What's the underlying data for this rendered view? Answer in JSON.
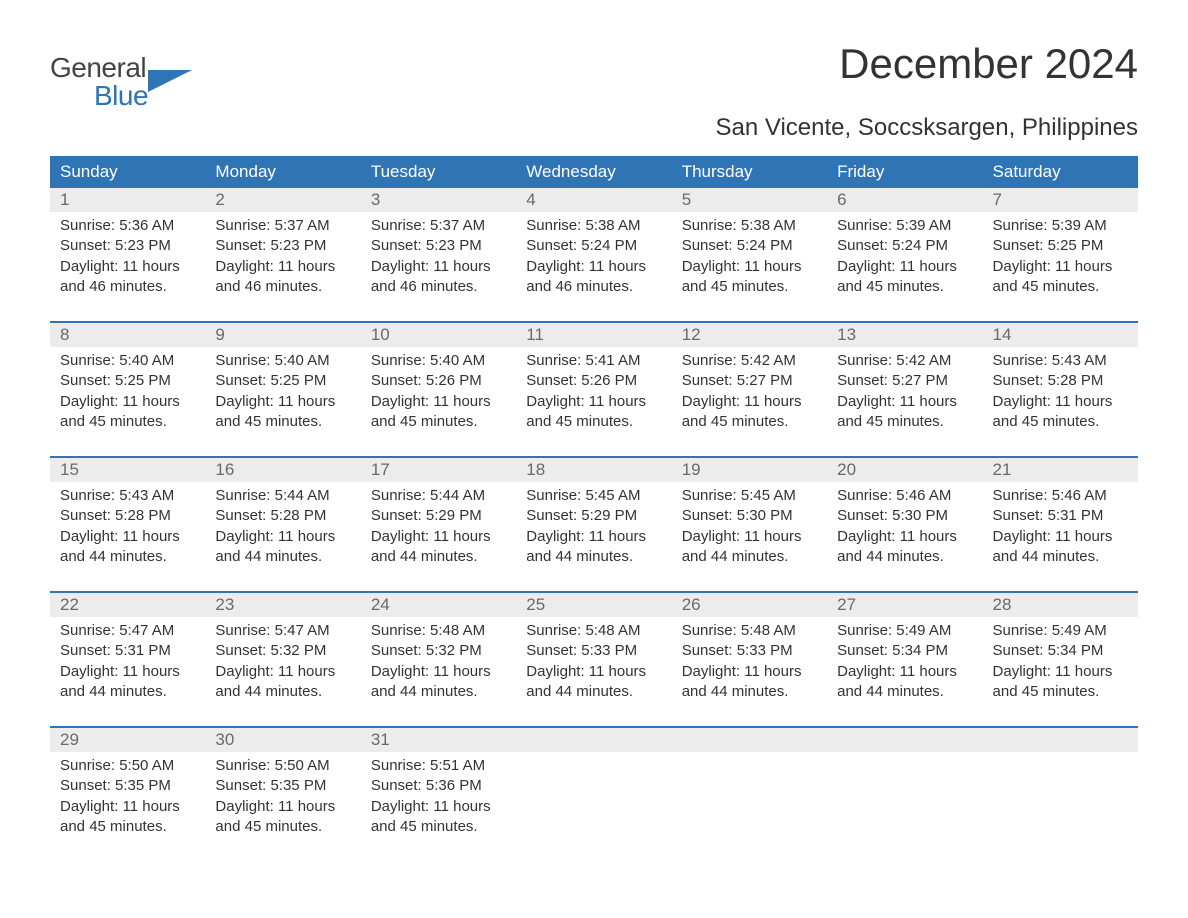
{
  "brand": {
    "line1": "General",
    "line2": "Blue",
    "text_color": "#444444",
    "blue_color": "#2f75b5"
  },
  "title": "December 2024",
  "subtitle": "San Vicente, Soccsksargen, Philippines",
  "colors": {
    "header_bg": "#2f75b5",
    "header_text": "#ffffff",
    "daynum_bg": "#ececec",
    "daynum_text": "#6a6a6a",
    "body_text": "#333333",
    "page_bg": "#ffffff",
    "week_border": "#2f75b5"
  },
  "day_headers": [
    "Sunday",
    "Monday",
    "Tuesday",
    "Wednesday",
    "Thursday",
    "Friday",
    "Saturday"
  ],
  "labels": {
    "sunrise": "Sunrise:",
    "sunset": "Sunset:",
    "daylight": "Daylight:"
  },
  "weeks": [
    [
      {
        "n": "1",
        "sunrise": "5:36 AM",
        "sunset": "5:23 PM",
        "daylight": "11 hours and 46 minutes."
      },
      {
        "n": "2",
        "sunrise": "5:37 AM",
        "sunset": "5:23 PM",
        "daylight": "11 hours and 46 minutes."
      },
      {
        "n": "3",
        "sunrise": "5:37 AM",
        "sunset": "5:23 PM",
        "daylight": "11 hours and 46 minutes."
      },
      {
        "n": "4",
        "sunrise": "5:38 AM",
        "sunset": "5:24 PM",
        "daylight": "11 hours and 46 minutes."
      },
      {
        "n": "5",
        "sunrise": "5:38 AM",
        "sunset": "5:24 PM",
        "daylight": "11 hours and 45 minutes."
      },
      {
        "n": "6",
        "sunrise": "5:39 AM",
        "sunset": "5:24 PM",
        "daylight": "11 hours and 45 minutes."
      },
      {
        "n": "7",
        "sunrise": "5:39 AM",
        "sunset": "5:25 PM",
        "daylight": "11 hours and 45 minutes."
      }
    ],
    [
      {
        "n": "8",
        "sunrise": "5:40 AM",
        "sunset": "5:25 PM",
        "daylight": "11 hours and 45 minutes."
      },
      {
        "n": "9",
        "sunrise": "5:40 AM",
        "sunset": "5:25 PM",
        "daylight": "11 hours and 45 minutes."
      },
      {
        "n": "10",
        "sunrise": "5:40 AM",
        "sunset": "5:26 PM",
        "daylight": "11 hours and 45 minutes."
      },
      {
        "n": "11",
        "sunrise": "5:41 AM",
        "sunset": "5:26 PM",
        "daylight": "11 hours and 45 minutes."
      },
      {
        "n": "12",
        "sunrise": "5:42 AM",
        "sunset": "5:27 PM",
        "daylight": "11 hours and 45 minutes."
      },
      {
        "n": "13",
        "sunrise": "5:42 AM",
        "sunset": "5:27 PM",
        "daylight": "11 hours and 45 minutes."
      },
      {
        "n": "14",
        "sunrise": "5:43 AM",
        "sunset": "5:28 PM",
        "daylight": "11 hours and 45 minutes."
      }
    ],
    [
      {
        "n": "15",
        "sunrise": "5:43 AM",
        "sunset": "5:28 PM",
        "daylight": "11 hours and 44 minutes."
      },
      {
        "n": "16",
        "sunrise": "5:44 AM",
        "sunset": "5:28 PM",
        "daylight": "11 hours and 44 minutes."
      },
      {
        "n": "17",
        "sunrise": "5:44 AM",
        "sunset": "5:29 PM",
        "daylight": "11 hours and 44 minutes."
      },
      {
        "n": "18",
        "sunrise": "5:45 AM",
        "sunset": "5:29 PM",
        "daylight": "11 hours and 44 minutes."
      },
      {
        "n": "19",
        "sunrise": "5:45 AM",
        "sunset": "5:30 PM",
        "daylight": "11 hours and 44 minutes."
      },
      {
        "n": "20",
        "sunrise": "5:46 AM",
        "sunset": "5:30 PM",
        "daylight": "11 hours and 44 minutes."
      },
      {
        "n": "21",
        "sunrise": "5:46 AM",
        "sunset": "5:31 PM",
        "daylight": "11 hours and 44 minutes."
      }
    ],
    [
      {
        "n": "22",
        "sunrise": "5:47 AM",
        "sunset": "5:31 PM",
        "daylight": "11 hours and 44 minutes."
      },
      {
        "n": "23",
        "sunrise": "5:47 AM",
        "sunset": "5:32 PM",
        "daylight": "11 hours and 44 minutes."
      },
      {
        "n": "24",
        "sunrise": "5:48 AM",
        "sunset": "5:32 PM",
        "daylight": "11 hours and 44 minutes."
      },
      {
        "n": "25",
        "sunrise": "5:48 AM",
        "sunset": "5:33 PM",
        "daylight": "11 hours and 44 minutes."
      },
      {
        "n": "26",
        "sunrise": "5:48 AM",
        "sunset": "5:33 PM",
        "daylight": "11 hours and 44 minutes."
      },
      {
        "n": "27",
        "sunrise": "5:49 AM",
        "sunset": "5:34 PM",
        "daylight": "11 hours and 44 minutes."
      },
      {
        "n": "28",
        "sunrise": "5:49 AM",
        "sunset": "5:34 PM",
        "daylight": "11 hours and 45 minutes."
      }
    ],
    [
      {
        "n": "29",
        "sunrise": "5:50 AM",
        "sunset": "5:35 PM",
        "daylight": "11 hours and 45 minutes."
      },
      {
        "n": "30",
        "sunrise": "5:50 AM",
        "sunset": "5:35 PM",
        "daylight": "11 hours and 45 minutes."
      },
      {
        "n": "31",
        "sunrise": "5:51 AM",
        "sunset": "5:36 PM",
        "daylight": "11 hours and 45 minutes."
      },
      null,
      null,
      null,
      null
    ]
  ]
}
